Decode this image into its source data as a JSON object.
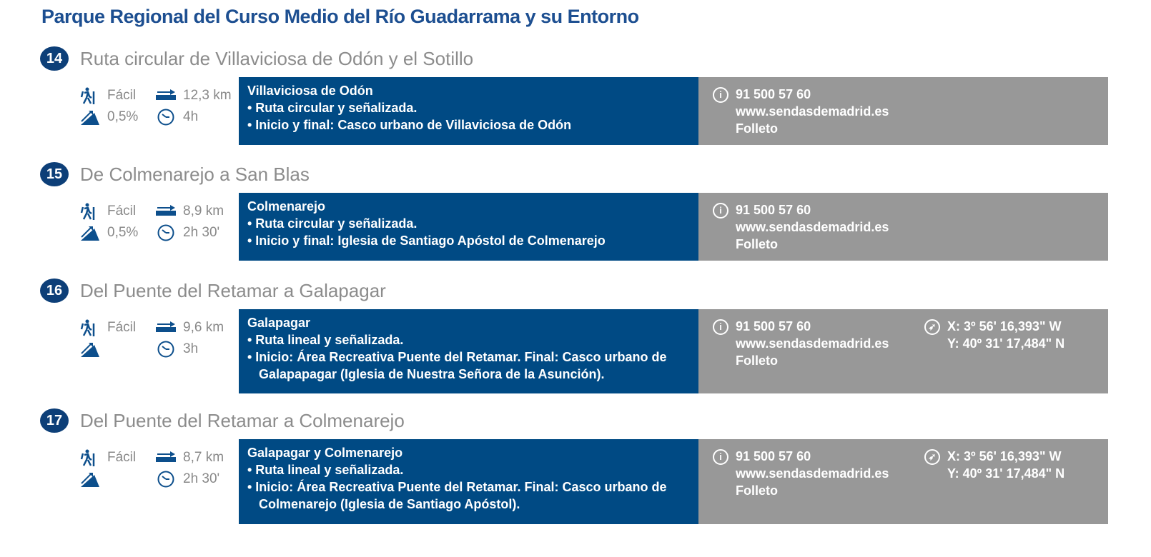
{
  "title": "Parque Regional del Curso Medio del Río Guadarrama y su Entorno",
  "colors": {
    "title": "#1d4f91",
    "blue_box": "#004a84",
    "grey_box": "#989898",
    "badge": "#0d3f78",
    "icons": "#0d4f8c"
  },
  "routes": [
    {
      "num": "14",
      "title": "Ruta circular de Villaviciosa de Odón y el Sotillo",
      "difficulty": "Fácil",
      "slope": "0,5%",
      "distance": "12,3 km",
      "time": "4h",
      "place": "Villaviciosa de Odón",
      "items": [
        "• Ruta circular y señalizada.",
        "• Inicio y final: Casco urbano de Villaviciosa de Odón"
      ],
      "phone": "91 500 57 60",
      "web": "www.sendasdemadrid.es",
      "brochure": "Folleto"
    },
    {
      "num": "15",
      "title": "De Colmenarejo a San Blas",
      "difficulty": "Fácil",
      "slope": "0,5%",
      "distance": "8,9 km",
      "time": "2h 30'",
      "place": "Colmenarejo",
      "items": [
        "• Ruta circular y señalizada.",
        "• Inicio y final: Iglesia de Santiago Apóstol de Colmenarejo"
      ],
      "phone": "91 500 57 60",
      "web": "www.sendasdemadrid.es",
      "brochure": "Folleto"
    },
    {
      "num": "16",
      "title": "Del Puente del Retamar a Galapagar",
      "difficulty": "Fácil",
      "slope": "",
      "distance": "9,6 km",
      "time": "3h",
      "place": "Galapagar",
      "items": [
        "• Ruta lineal y señalizada.",
        "• Inicio: Área Recreativa Puente del Retamar. Final: Casco urbano de Galapapagar (Iglesia de Nuestra Señora de la Asunción)."
      ],
      "phone": "91 500 57 60",
      "web": "www.sendasdemadrid.es",
      "brochure": "Folleto",
      "coord_x": "X: 3º 56' 16,393\" W",
      "coord_y": "Y: 40º 31' 17,484\" N"
    },
    {
      "num": "17",
      "title": "Del Puente del Retamar a Colmenarejo",
      "difficulty": "Fácil",
      "slope": "",
      "distance": "8,7 km",
      "time": "2h 30'",
      "place": "Galapagar y Colmenarejo",
      "items": [
        "• Ruta lineal y señalizada.",
        "• Inicio: Área Recreativa Puente del Retamar. Final: Casco urbano de Colmenarejo (Iglesia de Santiago Apóstol)."
      ],
      "phone": "91 500 57 60",
      "web": "www.sendasdemadrid.es",
      "brochure": "Folleto",
      "coord_x": "X: 3º 56' 16,393\" W",
      "coord_y": "Y: 40º 31' 17,484\" N"
    }
  ]
}
